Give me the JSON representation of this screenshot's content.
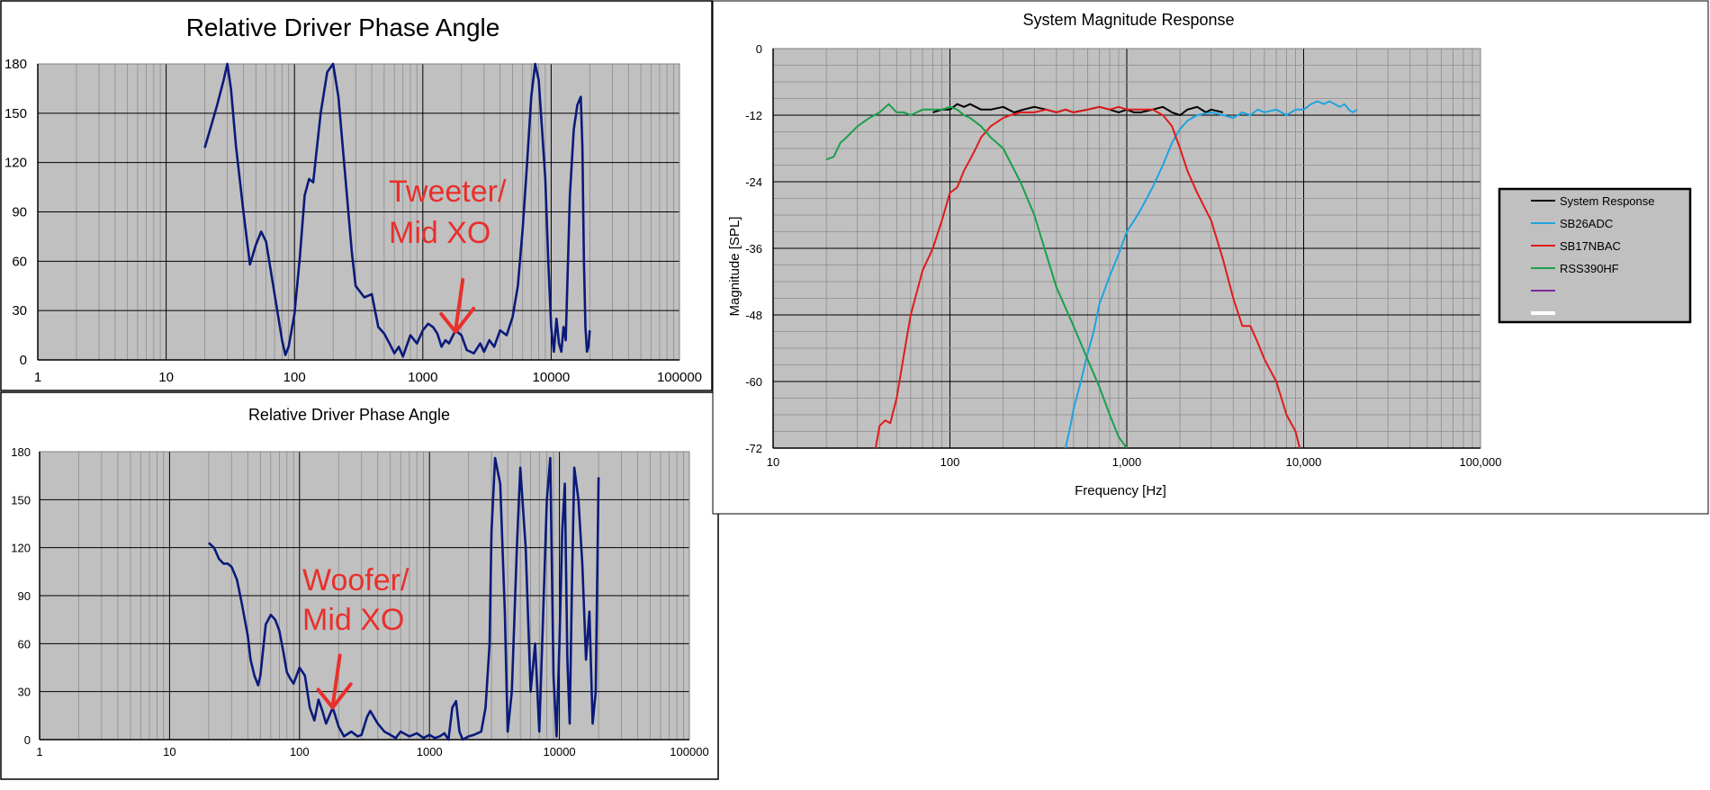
{
  "colors": {
    "plot_bg": "#c0c0c0",
    "grid_major": "#000000",
    "grid_minor": "#8c8c8c",
    "phase_line": "#0a1a7a",
    "annotation": "#e8302c",
    "system": "#000000",
    "sb26adc": "#1fa3e0",
    "sb17nbac": "#e01a1a",
    "rss390hf": "#1aa04a",
    "unnamed1": "#7a2aa0",
    "unnamed2": "#ffffff"
  },
  "chart_data": [
    {
      "type": "line",
      "title": "Relative Driver Phase Angle",
      "xscale": "log",
      "xlim": [
        1,
        100000
      ],
      "ylim": [
        0,
        180
      ],
      "xticks": [
        "1",
        "10",
        "100",
        "1000",
        "10000",
        "100000"
      ],
      "yticks": [
        "0",
        "30",
        "60",
        "90",
        "120",
        "150",
        "180"
      ],
      "annotation": {
        "line1": "Tweeter/",
        "line2": "Mid XO",
        "arrow_x": 1800,
        "arrow_y": 17
      },
      "series": [
        {
          "x": [
            20,
            22,
            25,
            28,
            30,
            32,
            35,
            40,
            45,
            50,
            55,
            60,
            70,
            80,
            85,
            90,
            100,
            110,
            120,
            130,
            140,
            160,
            180,
            200,
            220,
            250,
            280,
            300,
            350,
            400,
            450,
            500,
            550,
            600,
            650,
            700,
            800,
            900,
            1000,
            1100,
            1200,
            1300,
            1400,
            1500,
            1600,
            1800,
            2000,
            2200,
            2500,
            2800,
            3000,
            3300,
            3600,
            4000,
            4500,
            5000,
            5500,
            6000,
            6500,
            7000,
            7500,
            8000,
            8500,
            9000,
            9500,
            10000,
            10500,
            11000,
            11500,
            12000,
            12500,
            13000,
            14000,
            15000,
            16000,
            17000,
            17500,
            18000,
            18500,
            19000,
            19500,
            20000
          ],
          "y": [
            129,
            140,
            155,
            170,
            180,
            165,
            130,
            90,
            58,
            70,
            78,
            72,
            40,
            12,
            3,
            8,
            28,
            62,
            100,
            110,
            108,
            150,
            175,
            180,
            160,
            110,
            65,
            45,
            38,
            40,
            20,
            16,
            10,
            4,
            8,
            2,
            15,
            10,
            18,
            22,
            20,
            16,
            8,
            12,
            10,
            18,
            15,
            6,
            4,
            10,
            5,
            12,
            8,
            18,
            15,
            26,
            45,
            80,
            120,
            160,
            180,
            170,
            140,
            110,
            60,
            20,
            5,
            25,
            10,
            5,
            20,
            12,
            100,
            140,
            155,
            160,
            130,
            60,
            20,
            5,
            8,
            18
          ]
        }
      ]
    },
    {
      "type": "line",
      "title": "Relative Driver Phase Angle",
      "xscale": "log",
      "xlim": [
        1,
        100000
      ],
      "ylim": [
        0,
        180
      ],
      "xticks": [
        "1",
        "10",
        "100",
        "1000",
        "10000",
        "100000"
      ],
      "yticks": [
        "0",
        "30",
        "60",
        "90",
        "120",
        "150",
        "180"
      ],
      "annotation": {
        "line1": "Woofer/",
        "line2": "Mid XO",
        "arrow_x": 180,
        "arrow_y": 20
      },
      "series": [
        {
          "x": [
            20,
            22,
            24,
            26,
            28,
            30,
            33,
            36,
            40,
            42,
            45,
            48,
            50,
            55,
            60,
            65,
            70,
            75,
            80,
            85,
            90,
            100,
            110,
            120,
            130,
            140,
            150,
            160,
            180,
            200,
            220,
            250,
            280,
            300,
            330,
            350,
            400,
            450,
            500,
            550,
            600,
            700,
            800,
            900,
            1000,
            1100,
            1200,
            1300,
            1400,
            1500,
            1600,
            1700,
            1800,
            2000,
            2200,
            2500,
            2700,
            2900,
            3000,
            3200,
            3500,
            3800,
            4000,
            4300,
            4700,
            5000,
            5500,
            6000,
            6500,
            7000,
            7500,
            8000,
            8500,
            9000,
            9500,
            10000,
            10500,
            11000,
            11500,
            12000,
            12500,
            13000,
            14000,
            15000,
            16000,
            17000,
            18000,
            19000,
            20000
          ],
          "y": [
            123,
            120,
            113,
            110,
            110,
            108,
            100,
            85,
            65,
            50,
            40,
            34,
            40,
            72,
            78,
            75,
            68,
            55,
            42,
            38,
            35,
            45,
            40,
            20,
            12,
            25,
            18,
            10,
            20,
            8,
            2,
            5,
            2,
            3,
            14,
            18,
            10,
            5,
            3,
            1,
            5,
            2,
            4,
            1,
            3,
            1,
            2,
            4,
            0,
            20,
            24,
            5,
            0,
            2,
            3,
            5,
            20,
            60,
            130,
            176,
            160,
            80,
            5,
            30,
            120,
            170,
            120,
            30,
            60,
            5,
            80,
            150,
            176,
            40,
            2,
            60,
            130,
            160,
            50,
            10,
            100,
            170,
            150,
            110,
            50,
            80,
            10,
            30,
            164
          ]
        }
      ]
    },
    {
      "type": "line",
      "title": "System Magnitude Response",
      "xlabel": "Frequency [Hz]",
      "ylabel": "Magnitude  [SPL]",
      "xscale": "log",
      "xlim": [
        10,
        100000
      ],
      "ylim": [
        -72,
        0
      ],
      "xticks": [
        "10",
        "100",
        "1,000",
        "10,000",
        "100,000"
      ],
      "yticks": [
        "-72",
        "-60",
        "-48",
        "-36",
        "-24",
        "-12",
        "0"
      ],
      "legend_position": "right",
      "series": [
        {
          "name": "System Response",
          "color_key": "system",
          "x": [
            80,
            90,
            100,
            110,
            120,
            130,
            150,
            170,
            200,
            230,
            260,
            300,
            350,
            400,
            450,
            500,
            600,
            700,
            800,
            900,
            1000,
            1100,
            1200,
            1400,
            1600,
            1800,
            2000,
            2200,
            2500,
            2800,
            3000,
            3500
          ],
          "y": [
            -11.5,
            -11,
            -11,
            -10,
            -10.5,
            -10,
            -11,
            -11,
            -10.5,
            -11.5,
            -11,
            -10.5,
            -11,
            -11.5,
            -11,
            -11.5,
            -11,
            -10.5,
            -11,
            -11.5,
            -11,
            -11.5,
            -11.5,
            -11,
            -10.5,
            -11.5,
            -12,
            -11,
            -10.5,
            -11.5,
            -11,
            -11.5
          ]
        },
        {
          "name": "SB26ADC",
          "color_key": "sb26adc",
          "x": [
            450,
            480,
            500,
            550,
            600,
            650,
            700,
            800,
            900,
            1000,
            1100,
            1200,
            1400,
            1600,
            1800,
            2000,
            2200,
            2500,
            3000,
            3500,
            4000,
            4500,
            5000,
            5500,
            6000,
            7000,
            8000,
            9000,
            10000,
            11000,
            12000,
            13000,
            14000,
            15000,
            16000,
            17000,
            18000,
            19000,
            20000
          ],
          "y": [
            -72,
            -68,
            -65,
            -60,
            -55,
            -51,
            -46,
            -41,
            -37,
            -33,
            -31,
            -29,
            -25,
            -21,
            -17,
            -14.5,
            -13,
            -12,
            -11.5,
            -12,
            -12.5,
            -11.5,
            -12,
            -11,
            -11.5,
            -11,
            -12,
            -11,
            -11,
            -10,
            -9.5,
            -10,
            -9.5,
            -10,
            -10.5,
            -10,
            -11,
            -11.5,
            -11
          ]
        },
        {
          "name": "SB17NBAC",
          "color_key": "sb17nbac",
          "x": [
            38,
            40,
            43,
            46,
            50,
            55,
            60,
            70,
            80,
            90,
            100,
            110,
            120,
            130,
            140,
            150,
            170,
            200,
            220,
            250,
            300,
            350,
            400,
            450,
            500,
            600,
            700,
            800,
            900,
            1000,
            1200,
            1400,
            1600,
            1800,
            2000,
            2200,
            2500,
            3000,
            3500,
            4000,
            4500,
            5000,
            5500,
            6000,
            7000,
            8000,
            9000,
            9500
          ],
          "y": [
            -72,
            -68,
            -67,
            -67.5,
            -63,
            -55,
            -48,
            -40,
            -36,
            -31,
            -26,
            -25,
            -22,
            -20,
            -18,
            -16,
            -14,
            -12.5,
            -12,
            -11.5,
            -11.5,
            -11,
            -11.5,
            -11,
            -11.5,
            -11,
            -10.5,
            -11,
            -10.5,
            -11,
            -11,
            -11,
            -12,
            -14,
            -18,
            -22,
            -26,
            -31,
            -38,
            -45,
            -50,
            -50,
            -53,
            -56,
            -60,
            -66,
            -69,
            -72
          ]
        },
        {
          "name": "RSS390HF",
          "color_key": "rss390hf",
          "x": [
            20,
            22,
            24,
            26,
            30,
            35,
            40,
            45,
            50,
            55,
            60,
            70,
            80,
            90,
            100,
            110,
            120,
            130,
            150,
            170,
            200,
            250,
            300,
            350,
            400,
            500,
            600,
            700,
            800,
            900,
            1000
          ],
          "y": [
            -20,
            -19.5,
            -17,
            -16,
            -14,
            -12.5,
            -11.5,
            -10,
            -11.5,
            -11.5,
            -12,
            -11,
            -11,
            -11,
            -10.5,
            -11,
            -12,
            -12.5,
            -14,
            -16,
            -18,
            -24,
            -30,
            -37,
            -43,
            -50,
            -56,
            -61,
            -66,
            -70,
            -72
          ]
        },
        {
          "name": "",
          "color_key": "unnamed1",
          "x": [],
          "y": []
        },
        {
          "name": "",
          "color_key": "unnamed2",
          "x": [],
          "y": []
        }
      ]
    }
  ]
}
